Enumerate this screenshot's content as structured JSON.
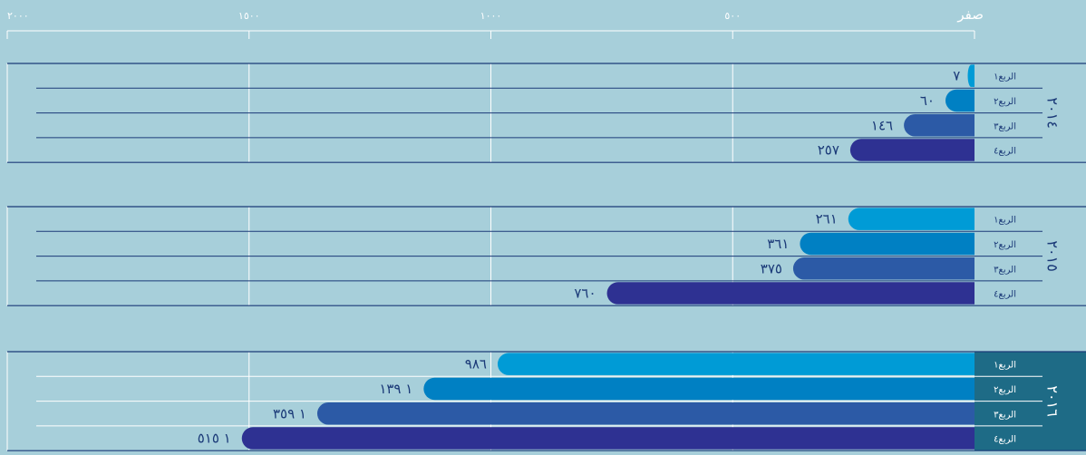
{
  "chart_data": {
    "type": "bar",
    "orientation": "horizontal",
    "x_direction": "right-to-left",
    "xlim": [
      0,
      2000
    ],
    "x_ticks": [
      {
        "value": 0,
        "label": "صفر"
      },
      {
        "value": 500,
        "label": "٥٠٠"
      },
      {
        "value": 1000,
        "label": "١٠٠٠"
      },
      {
        "value": 1500,
        "label": "١٥٠٠"
      },
      {
        "value": 2000,
        "label": "٢٠٠٠"
      }
    ],
    "groups": [
      {
        "year": "٢٠١٤",
        "bars": [
          {
            "label": "الربع١",
            "value": 7,
            "value_label": "٧"
          },
          {
            "label": "الربع٢",
            "value": 60,
            "value_label": "٦٠"
          },
          {
            "label": "الربع٣",
            "value": 146,
            "value_label": "١٤٦"
          },
          {
            "label": "الربع٤",
            "value": 257,
            "value_label": "٢٥٧"
          }
        ]
      },
      {
        "year": "٢٠١٥",
        "bars": [
          {
            "label": "الربع١",
            "value": 261,
            "value_label": "٢٦١"
          },
          {
            "label": "الربع٢",
            "value": 361,
            "value_label": "٣٦١"
          },
          {
            "label": "الربع٣",
            "value": 375,
            "value_label": "٣٧٥"
          },
          {
            "label": "الربع٤",
            "value": 760,
            "value_label": "٧٦٠"
          }
        ]
      },
      {
        "year": "٢٠١٦",
        "highlighted": true,
        "bars": [
          {
            "label": "الربع١",
            "value": 986,
            "value_label": "٩٨٦"
          },
          {
            "label": "الربع٢",
            "value": 1139,
            "value_label": "١ ١٣٩"
          },
          {
            "label": "الربع٣",
            "value": 1359,
            "value_label": "١ ٣٥٩"
          },
          {
            "label": "الربع٤",
            "value": 1515,
            "value_label": "١ ٥١٥"
          }
        ]
      }
    ],
    "colors": {
      "background": "#a7cfda",
      "highlight_band": "#1e6b86",
      "grid": "#ffffff",
      "rule": "#1b3a78",
      "quarters": [
        "#009bd6",
        "#0080c3",
        "#2c5aa6",
        "#2e3192"
      ]
    },
    "grid": true
  }
}
